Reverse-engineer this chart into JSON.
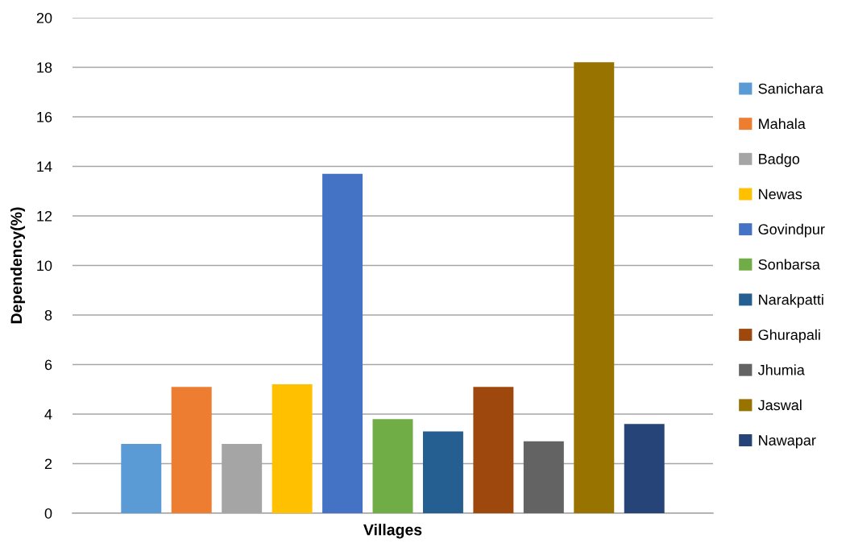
{
  "chart_data": {
    "type": "bar",
    "xlabel": "Villages",
    "ylabel": "Dependency(%)",
    "categories": [
      null
    ],
    "series": [
      {
        "name": "Sanichara",
        "color": "#5b9bd5",
        "values": [
          2.8
        ]
      },
      {
        "name": "Mahala",
        "color": "#ed7d31",
        "values": [
          5.1
        ]
      },
      {
        "name": "Badgo",
        "color": "#a5a5a5",
        "values": [
          2.8
        ]
      },
      {
        "name": "Newas",
        "color": "#ffc000",
        "values": [
          5.2
        ]
      },
      {
        "name": "Govindpur",
        "color": "#4472c4",
        "values": [
          13.7
        ]
      },
      {
        "name": "Sonbarsa",
        "color": "#70ad47",
        "values": [
          3.8
        ]
      },
      {
        "name": "Narakpatti",
        "color": "#255e91",
        "values": [
          3.3
        ]
      },
      {
        "name": "Ghurapali",
        "color": "#9e480e",
        "values": [
          5.1
        ]
      },
      {
        "name": "Jhumia",
        "color": "#636363",
        "values": [
          2.9
        ]
      },
      {
        "name": "Jaswal",
        "color": "#997300",
        "values": [
          18.2
        ]
      },
      {
        "name": "Nawapar",
        "color": "#264478",
        "values": [
          3.6
        ]
      }
    ],
    "ylim": [
      0,
      20
    ],
    "yticks": [
      0,
      2,
      4,
      6,
      8,
      10,
      12,
      14,
      16,
      18,
      20
    ],
    "grid": "y",
    "legend": "right"
  }
}
